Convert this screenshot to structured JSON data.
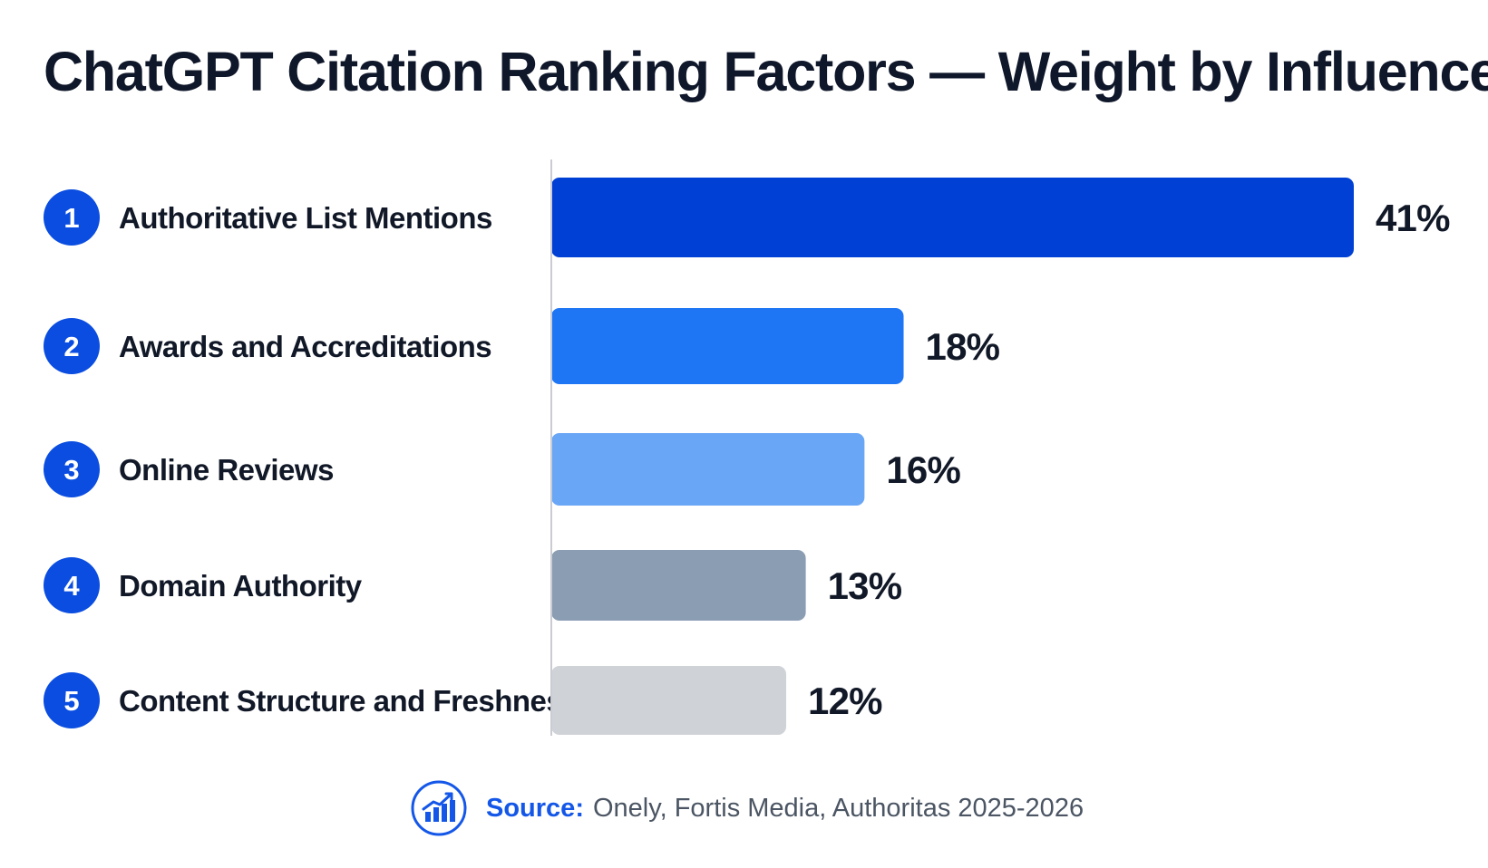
{
  "chart_data": {
    "type": "bar",
    "orientation": "horizontal",
    "title": "ChatGPT Citation Ranking Factors — Weight by Influence",
    "categories": [
      "Authoritative List Mentions",
      "Awards and Accreditations",
      "Online Reviews",
      "Domain Authority",
      "Content Structure and Freshness"
    ],
    "ranks": [
      "1",
      "2",
      "3",
      "4",
      "5"
    ],
    "values": [
      41,
      18,
      16,
      13,
      12
    ],
    "value_labels": [
      "41%",
      "18%",
      "16%",
      "13%",
      "12%"
    ],
    "unit": "%",
    "bar_colors": [
      "#0040d4",
      "#1e76f5",
      "#6aa6f6",
      "#8b9db3",
      "#cfd2d7"
    ],
    "xlim": [
      0,
      41
    ],
    "grid": false,
    "legend": "none"
  },
  "source": {
    "label": "Source:",
    "text": "Onely, Fortis Media, Authoritas 2025-2026",
    "icon": "bar-chart-growth-icon"
  },
  "colors": {
    "accent": "#0a4de0",
    "source_label": "#1457e8"
  }
}
